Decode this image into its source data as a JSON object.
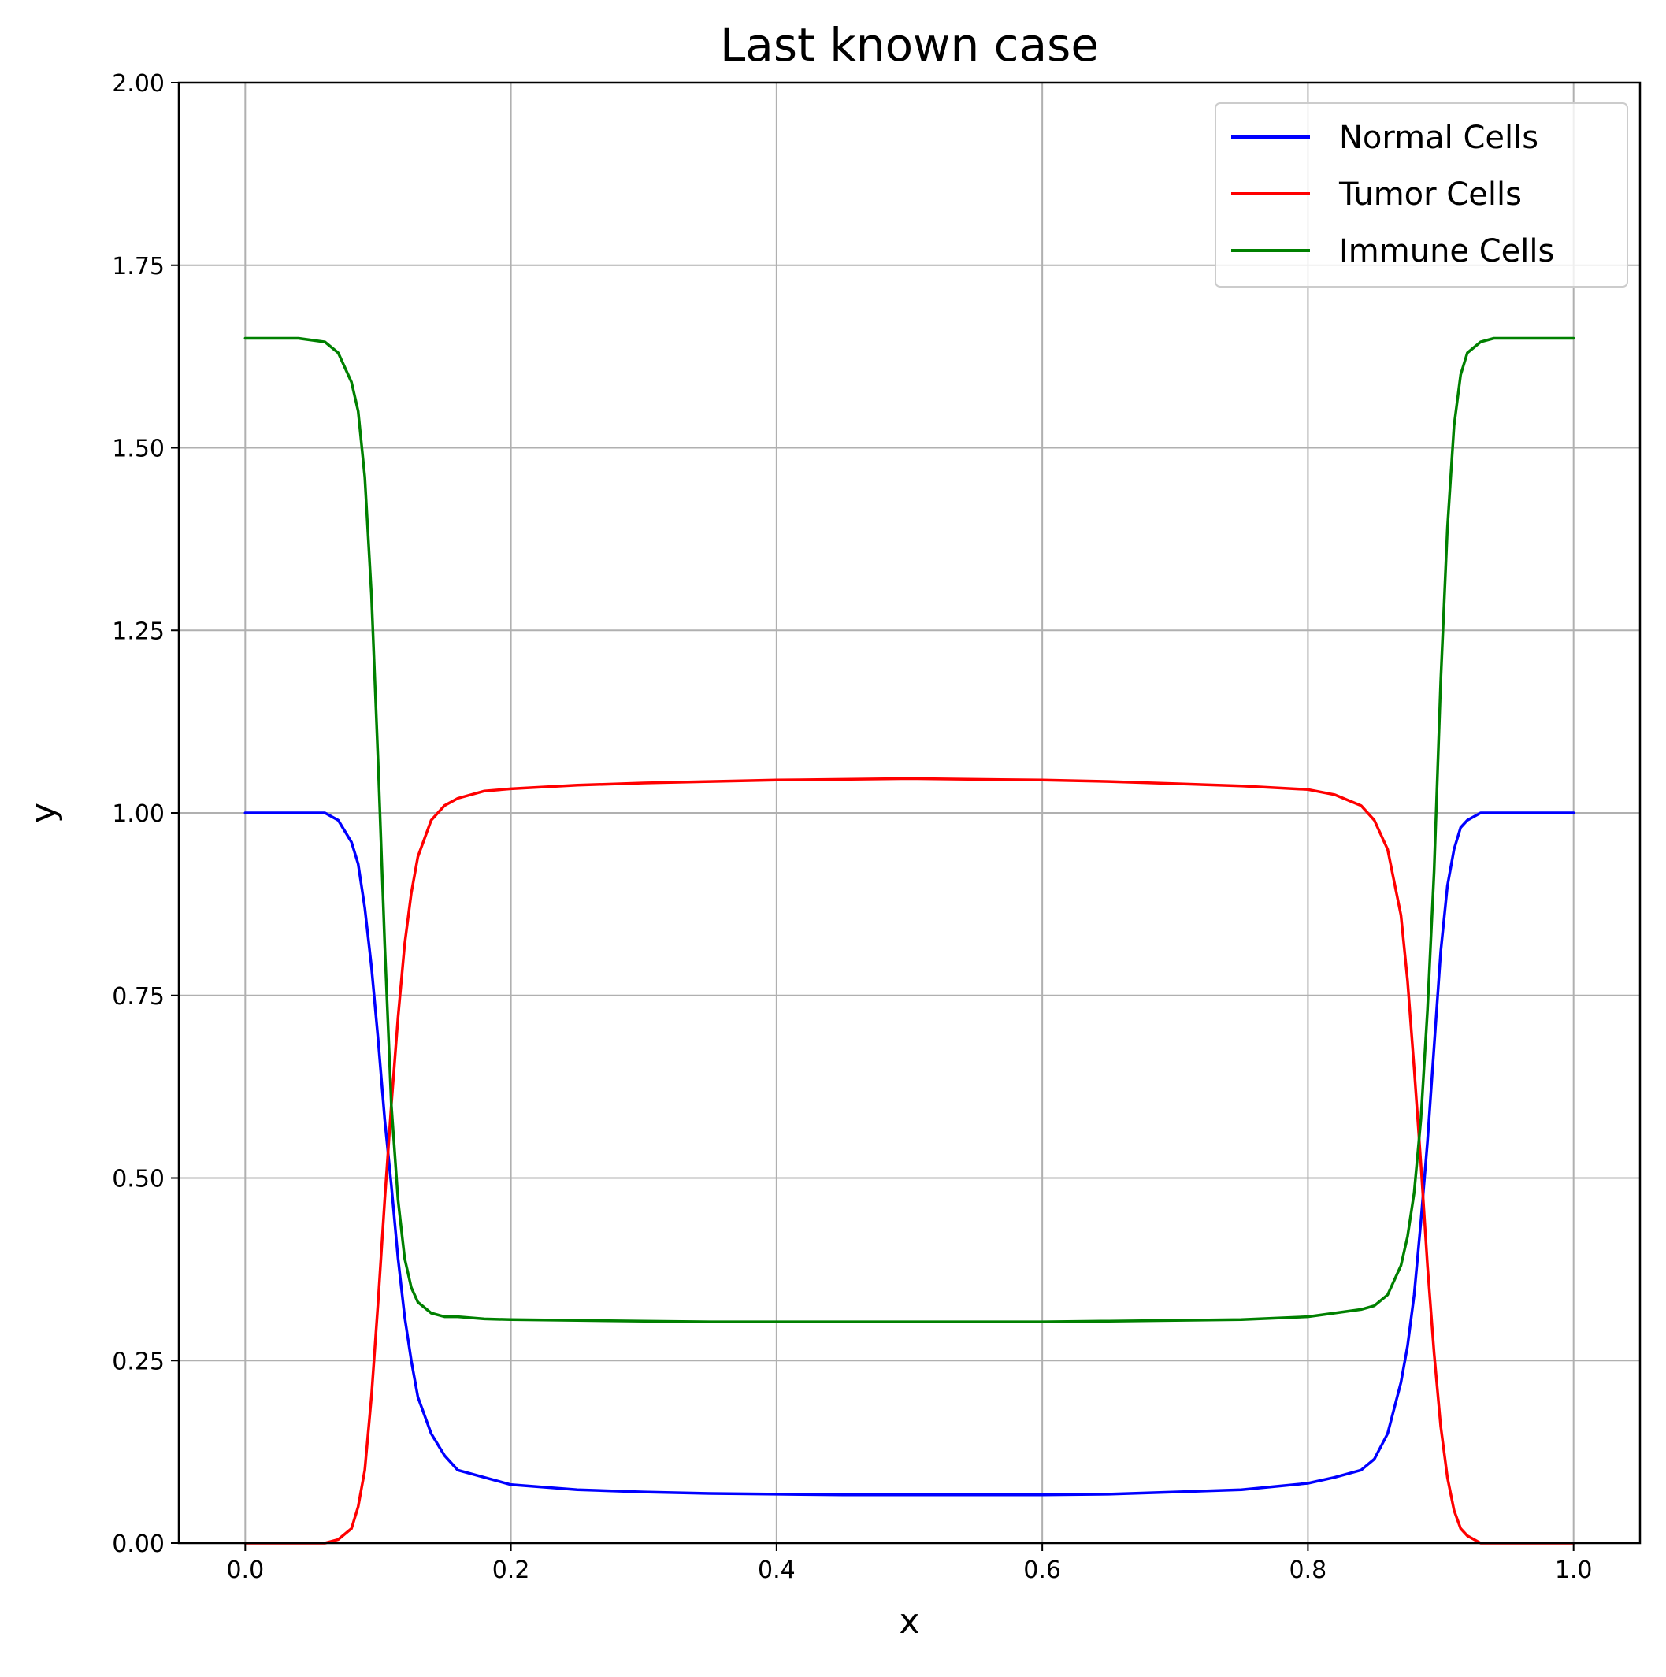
{
  "chart_data": {
    "type": "line",
    "title": "Last known case",
    "xlabel": "x",
    "ylabel": "y",
    "xlim": [
      -0.05,
      1.05
    ],
    "ylim": [
      0.0,
      2.0
    ],
    "x_ticks": [
      0.0,
      0.2,
      0.4,
      0.6,
      0.8,
      1.0
    ],
    "x_tick_labels": [
      "0.0",
      "0.2",
      "0.4",
      "0.6",
      "0.8",
      "1.0"
    ],
    "y_ticks": [
      0.0,
      0.25,
      0.5,
      0.75,
      1.0,
      1.25,
      1.5,
      1.75,
      2.0
    ],
    "y_tick_labels": [
      "0.00",
      "0.25",
      "0.50",
      "0.75",
      "1.00",
      "1.25",
      "1.50",
      "1.75",
      "2.00"
    ],
    "grid": true,
    "legend_position": "top-right",
    "x": [
      0.0,
      0.02,
      0.04,
      0.06,
      0.07,
      0.08,
      0.085,
      0.09,
      0.095,
      0.1,
      0.105,
      0.11,
      0.115,
      0.12,
      0.125,
      0.13,
      0.14,
      0.15,
      0.16,
      0.18,
      0.2,
      0.25,
      0.3,
      0.35,
      0.4,
      0.45,
      0.5,
      0.55,
      0.6,
      0.65,
      0.7,
      0.75,
      0.8,
      0.82,
      0.84,
      0.85,
      0.86,
      0.87,
      0.875,
      0.88,
      0.885,
      0.89,
      0.895,
      0.9,
      0.905,
      0.91,
      0.915,
      0.92,
      0.93,
      0.94,
      0.96,
      0.98,
      1.0
    ],
    "series": [
      {
        "name": "Normal Cells",
        "color": "#0000ff",
        "values": [
          1.0,
          1.0,
          1.0,
          1.0,
          0.99,
          0.96,
          0.93,
          0.87,
          0.79,
          0.69,
          0.58,
          0.49,
          0.39,
          0.31,
          0.25,
          0.2,
          0.15,
          0.12,
          0.1,
          0.09,
          0.08,
          0.073,
          0.07,
          0.068,
          0.067,
          0.066,
          0.066,
          0.066,
          0.066,
          0.067,
          0.07,
          0.073,
          0.082,
          0.09,
          0.1,
          0.115,
          0.15,
          0.22,
          0.27,
          0.34,
          0.44,
          0.55,
          0.68,
          0.81,
          0.9,
          0.95,
          0.98,
          0.99,
          1.0,
          1.0,
          1.0,
          1.0,
          1.0
        ]
      },
      {
        "name": "Tumor Cells",
        "color": "#ff0000",
        "values": [
          0.0,
          0.0,
          0.0,
          0.0,
          0.005,
          0.02,
          0.05,
          0.1,
          0.2,
          0.33,
          0.47,
          0.6,
          0.72,
          0.82,
          0.89,
          0.94,
          0.99,
          1.01,
          1.02,
          1.03,
          1.033,
          1.038,
          1.041,
          1.043,
          1.045,
          1.046,
          1.047,
          1.046,
          1.045,
          1.043,
          1.04,
          1.037,
          1.032,
          1.025,
          1.01,
          0.99,
          0.95,
          0.86,
          0.77,
          0.65,
          0.52,
          0.38,
          0.26,
          0.16,
          0.09,
          0.045,
          0.02,
          0.01,
          0.0,
          0.0,
          0.0,
          0.0,
          0.0
        ]
      },
      {
        "name": "Immune Cells",
        "color": "#008000",
        "values": [
          1.65,
          1.65,
          1.65,
          1.645,
          1.63,
          1.59,
          1.55,
          1.46,
          1.3,
          1.07,
          0.82,
          0.6,
          0.47,
          0.39,
          0.35,
          0.33,
          0.315,
          0.31,
          0.31,
          0.307,
          0.306,
          0.305,
          0.304,
          0.303,
          0.303,
          0.303,
          0.303,
          0.303,
          0.303,
          0.304,
          0.305,
          0.306,
          0.31,
          0.315,
          0.32,
          0.325,
          0.34,
          0.38,
          0.42,
          0.48,
          0.58,
          0.73,
          0.92,
          1.18,
          1.39,
          1.53,
          1.6,
          1.63,
          1.645,
          1.65,
          1.65,
          1.65,
          1.65
        ]
      }
    ]
  }
}
